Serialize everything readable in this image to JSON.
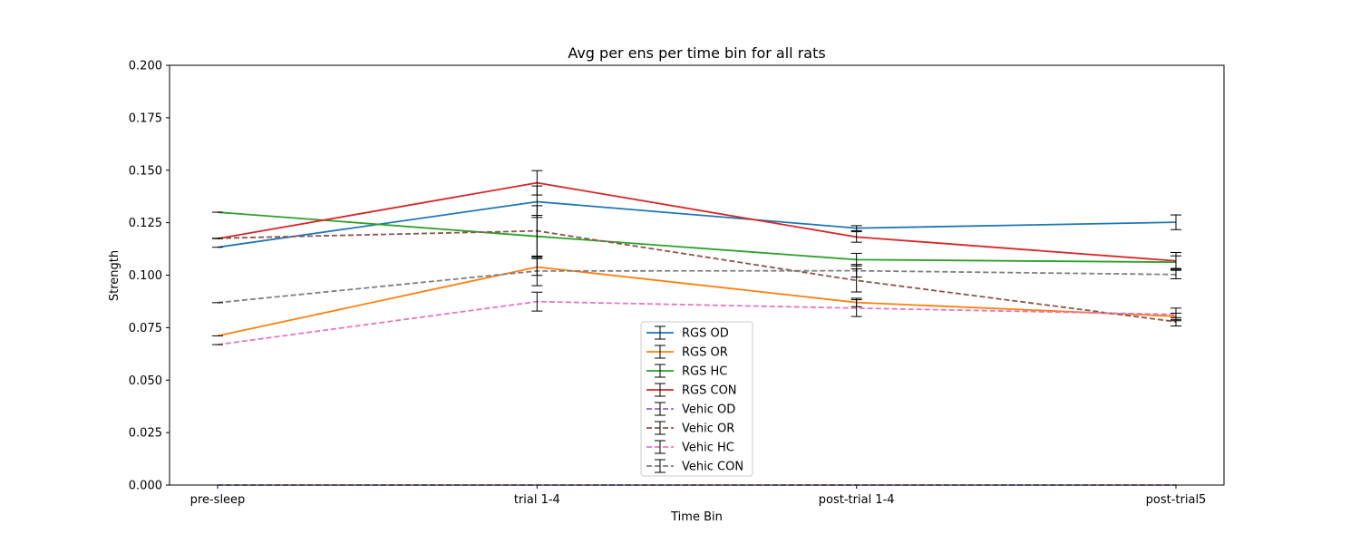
{
  "chart_data": {
    "type": "line",
    "title": "Avg per ens per time bin for all rats",
    "xlabel": "Time Bin",
    "ylabel": "Strength",
    "categories": [
      "pre-sleep",
      "trial 1-4",
      "post-trial 1-4",
      "post-trial5"
    ],
    "ylim": [
      0,
      0.2
    ],
    "yticks": [
      "0.000",
      "0.025",
      "0.050",
      "0.075",
      "0.100",
      "0.125",
      "0.150",
      "0.175",
      "0.200"
    ],
    "grid": false,
    "legend_position": "lower-center",
    "series": [
      {
        "name": "RGS OD",
        "color": "#1f77b4",
        "dashed": false,
        "values": [
          0.1133,
          0.135,
          0.1224,
          0.1252
        ],
        "errors": [
          0.0,
          0.0075,
          0.0012,
          0.0035
        ]
      },
      {
        "name": "RGS OR",
        "color": "#ff7f0e",
        "dashed": false,
        "values": [
          0.0711,
          0.1039,
          0.087,
          0.0804
        ],
        "errors": [
          0.0,
          0.004,
          0.002,
          0.0015
        ]
      },
      {
        "name": "RGS HC",
        "color": "#2ca02c",
        "dashed": false,
        "values": [
          0.13,
          0.1185,
          0.1074,
          0.1062
        ],
        "errors": [
          0.0,
          0.01,
          0.003,
          0.003
        ]
      },
      {
        "name": "RGS CON",
        "color": "#d62728",
        "dashed": false,
        "values": [
          0.1174,
          0.144,
          0.1182,
          0.1068
        ],
        "errors": [
          0.0,
          0.0058,
          0.0025,
          0.004
        ]
      },
      {
        "name": "Vehic OD",
        "color": "#9467bd",
        "dashed": true,
        "values": [
          0.0,
          0.0,
          0.0,
          0.0
        ],
        "errors": [
          0.0,
          0.0,
          0.0,
          0.0
        ]
      },
      {
        "name": "Vehic OR",
        "color": "#8c564b",
        "dashed": true,
        "values": [
          0.1176,
          0.1211,
          0.0975,
          0.0778
        ],
        "errors": [
          0.0,
          0.012,
          0.0055,
          0.002
        ]
      },
      {
        "name": "Vehic HC",
        "color": "#e377c2",
        "dashed": true,
        "values": [
          0.0669,
          0.0874,
          0.0843,
          0.0813
        ],
        "errors": [
          0.0,
          0.0045,
          0.004,
          0.003
        ]
      },
      {
        "name": "Vehic CON",
        "color": "#7f7f7f",
        "dashed": true,
        "values": [
          0.0869,
          0.102,
          0.1021,
          0.1003
        ],
        "errors": [
          0.0,
          0.007,
          0.003,
          0.002
        ]
      }
    ]
  }
}
